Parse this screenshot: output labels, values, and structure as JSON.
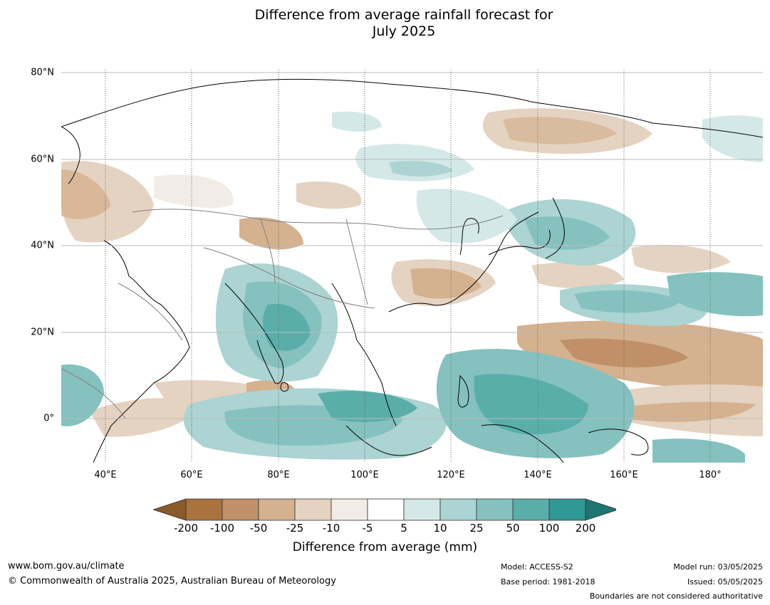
{
  "title_line1": "Difference from average rainfall forecast for",
  "title_line2": "July 2025",
  "lat_labels": [
    "80°N",
    "60°N",
    "40°N",
    "20°N",
    "0°"
  ],
  "lon_labels": [
    "40°E",
    "60°E",
    "80°E",
    "100°E",
    "120°E",
    "140°E",
    "160°E",
    "180°"
  ],
  "colorbar": {
    "ticks": [
      "-200",
      "-100",
      "-50",
      "-25",
      "-10",
      "-5",
      "5",
      "10",
      "25",
      "50",
      "100",
      "200"
    ],
    "colors": [
      "#8b5a2b",
      "#a8733f",
      "#c09068",
      "#d4b18f",
      "#e5d3c1",
      "#f2ece6",
      "#ffffff",
      "#d4e9e7",
      "#abd4d2",
      "#85c1bf",
      "#5aaeaa",
      "#309996",
      "#1d7470"
    ],
    "title": "Difference from average (mm)"
  },
  "footer": {
    "url": "www.bom.gov.au/climate",
    "copyright": "© Commonwealth of Australia 2025, Australian Bureau of Meteorology",
    "model": "Model: ACCESS-S2",
    "base_period": "Base period: 1981-2018",
    "model_run": "Model run: 03/05/2025",
    "issued": "Issued: 05/05/2025",
    "boundaries": "Boundaries are not considered authoritative"
  }
}
